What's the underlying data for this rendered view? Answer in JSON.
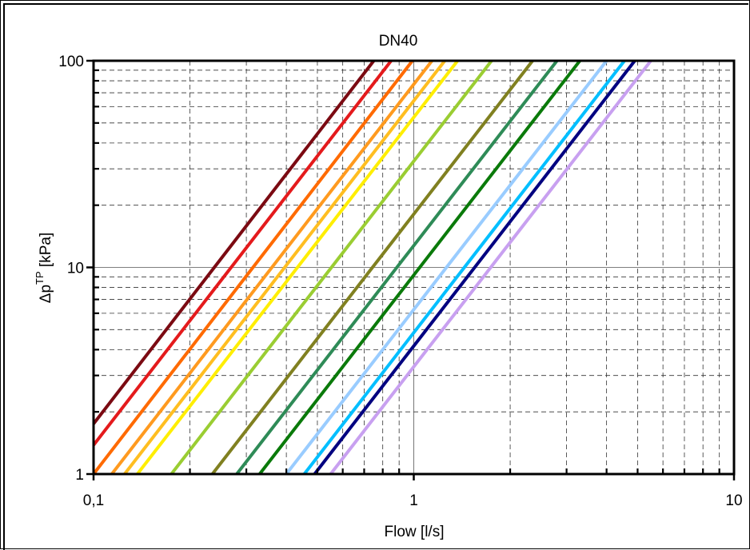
{
  "chart_data": {
    "type": "line",
    "title": "DN40",
    "xlabel": "Flow [l/s]",
    "ylabel": {
      "base": "Δp",
      "superscript": "TP",
      "unit": " [kPa]"
    },
    "x_scale": "log",
    "y_scale": "log",
    "xlim": [
      0.1,
      10
    ],
    "ylim": [
      1,
      100
    ],
    "x_ticks": [
      {
        "value": 0.1,
        "label": "0,1"
      },
      {
        "value": 1,
        "label": "1"
      },
      {
        "value": 10,
        "label": "10"
      }
    ],
    "y_ticks": [
      {
        "value": 1,
        "label": "1"
      },
      {
        "value": 10,
        "label": "10"
      },
      {
        "value": 100,
        "label": "100"
      }
    ],
    "grid": true,
    "legend": "none",
    "series": [
      {
        "color": "#7b0a12",
        "x": [
          0.1,
          0.75
        ],
        "y": [
          1.75,
          100
        ]
      },
      {
        "color": "#e41a1c",
        "x": [
          0.1,
          0.85
        ],
        "y": [
          1.38,
          100
        ]
      },
      {
        "color": "#ff6a00",
        "x": [
          0.1,
          0.99
        ],
        "y": [
          1.0,
          100
        ]
      },
      {
        "color": "#ff9a1f",
        "x": [
          0.114,
          1.14
        ],
        "y": [
          1.0,
          100
        ]
      },
      {
        "color": "#ffbe20",
        "x": [
          0.125,
          1.25
        ],
        "y": [
          1.0,
          100
        ]
      },
      {
        "color": "#ffee00",
        "x": [
          0.137,
          1.37
        ],
        "y": [
          1.0,
          100
        ]
      },
      {
        "color": "#9acd32",
        "x": [
          0.175,
          1.75
        ],
        "y": [
          1.0,
          100
        ]
      },
      {
        "color": "#808020",
        "x": [
          0.235,
          2.35
        ],
        "y": [
          1.0,
          100
        ]
      },
      {
        "color": "#2e8b57",
        "x": [
          0.28,
          2.8
        ],
        "y": [
          1.0,
          100
        ]
      },
      {
        "color": "#0a7a0a",
        "x": [
          0.33,
          3.3
        ],
        "y": [
          1.0,
          100
        ]
      },
      {
        "color": "#99ccff",
        "x": [
          0.4,
          4.0
        ],
        "y": [
          1.0,
          100
        ]
      },
      {
        "color": "#00bfff",
        "x": [
          0.455,
          4.55
        ],
        "y": [
          1.0,
          100
        ]
      },
      {
        "color": "#000080",
        "x": [
          0.49,
          4.9
        ],
        "y": [
          1.0,
          100
        ]
      },
      {
        "color": "#c8a0f0",
        "x": [
          0.55,
          5.5
        ],
        "y": [
          1.0,
          100
        ]
      }
    ]
  }
}
